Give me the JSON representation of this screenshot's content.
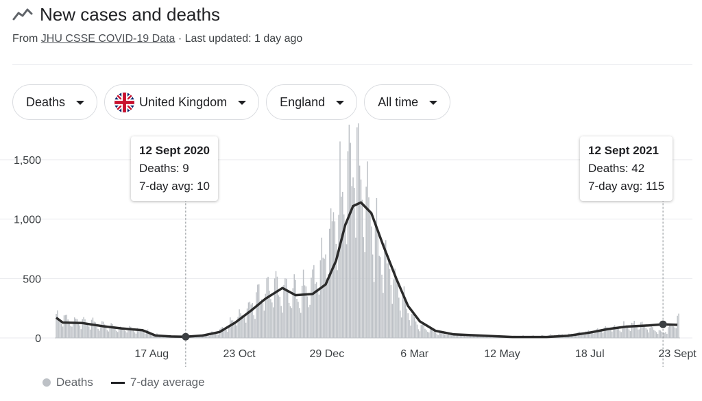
{
  "header": {
    "title": "New cases and deaths",
    "source_prefix": "From ",
    "source_link": "JHU CSSE COVID-19 Data",
    "updated": " · Last updated: 1 day ago",
    "icon": "trending-line-icon"
  },
  "filters": {
    "metric": "Deaths",
    "country": "United Kingdom",
    "region": "England",
    "range": "All time",
    "country_icon": "uk-flag-icon"
  },
  "tooltips": [
    {
      "date": "12 Sept 2020",
      "deaths": "Deaths: 9",
      "avg": "7-day avg: 10"
    },
    {
      "date": "12 Sept 2021",
      "deaths": "Deaths: 42",
      "avg": "7-day avg: 115"
    }
  ],
  "legend": {
    "bars": "Deaths",
    "line": "7-day average"
  },
  "colors": {
    "bars": "#bdc1c6",
    "line": "#2b2b2b",
    "grid": "#e8eaed"
  },
  "chart_data": {
    "type": "bar",
    "title": "New cases and deaths",
    "ylim": [
      0,
      1650
    ],
    "yticks": [
      {
        "v": 0,
        "label": "0"
      },
      {
        "v": 500,
        "label": "500"
      },
      {
        "v": 1000,
        "label": "1,000"
      },
      {
        "v": 1500,
        "label": "1,500"
      }
    ],
    "xticks": [
      {
        "date": "2020-08-17",
        "label": "17 Aug"
      },
      {
        "date": "2020-10-23",
        "label": "23 Oct"
      },
      {
        "date": "2020-12-29",
        "label": "29 Dec"
      },
      {
        "date": "2021-03-06",
        "label": "6 Mar"
      },
      {
        "date": "2021-05-12",
        "label": "12 May"
      },
      {
        "date": "2021-07-18",
        "label": "18 Jul"
      },
      {
        "date": "2021-09-23",
        "label": "23 Sept"
      }
    ],
    "x_start": "2020-06-05",
    "x_end": "2021-09-24",
    "highlights": [
      "2020-09-12",
      "2021-09-12"
    ],
    "series": [
      {
        "name": "Deaths",
        "kind": "bar",
        "points": [
          [
            "2020-06-05",
            190
          ],
          [
            "2020-06-20",
            150
          ],
          [
            "2020-07-10",
            110
          ],
          [
            "2020-07-25",
            85
          ],
          [
            "2020-08-10",
            70
          ],
          [
            "2020-08-22",
            25
          ],
          [
            "2020-09-01",
            10
          ],
          [
            "2020-09-12",
            9
          ],
          [
            "2020-09-25",
            22
          ],
          [
            "2020-10-05",
            45
          ],
          [
            "2020-10-15",
            110
          ],
          [
            "2020-10-28",
            250
          ],
          [
            "2020-11-08",
            380
          ],
          [
            "2020-11-20",
            450
          ],
          [
            "2020-12-01",
            400
          ],
          [
            "2020-12-15",
            420
          ],
          [
            "2020-12-25",
            650
          ],
          [
            "2021-01-05",
            1100
          ],
          [
            "2021-01-12",
            1300
          ],
          [
            "2021-01-19",
            1640
          ],
          [
            "2021-01-26",
            1250
          ],
          [
            "2021-02-05",
            900
          ],
          [
            "2021-02-15",
            600
          ],
          [
            "2021-02-28",
            250
          ],
          [
            "2021-03-10",
            100
          ],
          [
            "2021-03-25",
            45
          ],
          [
            "2021-04-15",
            25
          ],
          [
            "2021-05-12",
            15
          ],
          [
            "2021-06-10",
            18
          ],
          [
            "2021-07-01",
            30
          ],
          [
            "2021-07-18",
            55
          ],
          [
            "2021-08-05",
            95
          ],
          [
            "2021-08-25",
            120
          ],
          [
            "2021-09-12",
            42
          ],
          [
            "2021-09-23",
            160
          ]
        ]
      },
      {
        "name": "7-day average",
        "kind": "line",
        "points": [
          [
            "2020-06-05",
            170
          ],
          [
            "2020-06-10",
            130
          ],
          [
            "2020-06-25",
            125
          ],
          [
            "2020-07-10",
            100
          ],
          [
            "2020-07-25",
            80
          ],
          [
            "2020-08-10",
            65
          ],
          [
            "2020-08-20",
            20
          ],
          [
            "2020-09-01",
            12
          ],
          [
            "2020-09-12",
            10
          ],
          [
            "2020-09-25",
            20
          ],
          [
            "2020-10-08",
            50
          ],
          [
            "2020-10-20",
            130
          ],
          [
            "2020-11-01",
            230
          ],
          [
            "2020-11-12",
            330
          ],
          [
            "2020-11-25",
            420
          ],
          [
            "2020-12-05",
            360
          ],
          [
            "2020-12-18",
            370
          ],
          [
            "2020-12-28",
            450
          ],
          [
            "2021-01-05",
            650
          ],
          [
            "2021-01-12",
            950
          ],
          [
            "2021-01-18",
            1110
          ],
          [
            "2021-01-24",
            1140
          ],
          [
            "2021-02-01",
            1050
          ],
          [
            "2021-02-10",
            780
          ],
          [
            "2021-02-20",
            500
          ],
          [
            "2021-03-01",
            270
          ],
          [
            "2021-03-10",
            140
          ],
          [
            "2021-03-22",
            60
          ],
          [
            "2021-04-05",
            30
          ],
          [
            "2021-04-25",
            20
          ],
          [
            "2021-05-20",
            8
          ],
          [
            "2021-06-15",
            8
          ],
          [
            "2021-07-01",
            18
          ],
          [
            "2021-07-18",
            45
          ],
          [
            "2021-08-01",
            75
          ],
          [
            "2021-08-15",
            95
          ],
          [
            "2021-09-01",
            105
          ],
          [
            "2021-09-12",
            115
          ],
          [
            "2021-09-23",
            110
          ]
        ]
      }
    ]
  }
}
